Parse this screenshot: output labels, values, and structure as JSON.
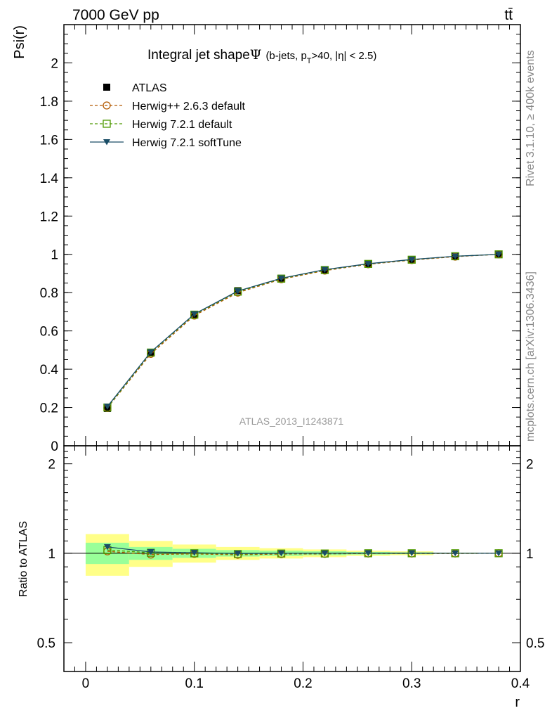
{
  "header": {
    "energy_label": "7000 GeV pp",
    "process_label": "tt̄"
  },
  "side_labels": {
    "rivet": "Rivet 3.1.10, ≥ 400k events",
    "mcplots": "mcplots.cern.ch [arXiv:1306.3436]"
  },
  "chart_data": [
    {
      "panel": "main",
      "type": "line",
      "title": "Integral jet shape",
      "title_symbol": "Ψ",
      "subtitle_prefix": "(b-jets, p",
      "subtitle_sub": "T",
      "subtitle_suffix": ">40, |η| < 2.5)",
      "ylabel": "Psi(r)",
      "xlabel": "r",
      "xlim": [
        -0.02,
        0.4
      ],
      "ylim": [
        0,
        2.2
      ],
      "yticks": [
        0,
        0.2,
        0.4,
        0.6,
        0.8,
        1,
        1.2,
        1.4,
        1.6,
        1.8,
        2
      ],
      "ytick_labels": [
        "0",
        "0.2",
        "0.4",
        "0.6",
        "0.8",
        "1",
        "1.2",
        "1.4",
        "1.6",
        "1.8",
        "2"
      ],
      "watermark": "ATLAS_2013_I1243871",
      "legend_position": "top-left",
      "x": [
        0.02,
        0.06,
        0.1,
        0.14,
        0.18,
        0.22,
        0.26,
        0.3,
        0.34,
        0.38
      ],
      "series": [
        {
          "name": "ATLAS",
          "color": "#000000",
          "marker": "square-filled",
          "values": [
            0.195,
            0.485,
            0.685,
            0.81,
            0.875,
            0.92,
            0.95,
            0.972,
            0.99,
            1.0
          ]
        },
        {
          "name": "Herwig++ 2.6.3 default",
          "color": "#b35900",
          "marker": "circle-open",
          "dash": "dashed",
          "values": [
            0.198,
            0.48,
            0.68,
            0.8,
            0.87,
            0.915,
            0.948,
            0.97,
            0.988,
            1.0
          ]
        },
        {
          "name": "Herwig 7.2.1 default",
          "color": "#4d9900",
          "marker": "square-open",
          "dash": "dashed",
          "values": [
            0.2,
            0.487,
            0.685,
            0.805,
            0.873,
            0.918,
            0.95,
            0.972,
            0.99,
            1.0
          ]
        },
        {
          "name": "Herwig 7.2.1 softTune",
          "color": "#1a4d66",
          "marker": "triangle-down-filled",
          "dash": "solid",
          "values": [
            0.205,
            0.49,
            0.688,
            0.808,
            0.875,
            0.92,
            0.951,
            0.973,
            0.99,
            1.0
          ]
        }
      ]
    },
    {
      "panel": "ratio",
      "type": "line",
      "ylabel": "Ratio to ATLAS",
      "xlabel": "r",
      "xlim": [
        -0.02,
        0.4
      ],
      "ylim": [
        0.4,
        2.3
      ],
      "log_y": true,
      "yticks": [
        0.5,
        1,
        2
      ],
      "ytick_labels": [
        "0.5",
        "1",
        "2"
      ],
      "xticks": [
        0,
        0.1,
        0.2,
        0.3,
        0.4
      ],
      "xtick_labels": [
        "0",
        "0.1",
        "0.2",
        "0.3",
        "0.4"
      ],
      "bins": [
        [
          0.0,
          0.04
        ],
        [
          0.04,
          0.08
        ],
        [
          0.08,
          0.12
        ],
        [
          0.12,
          0.16
        ],
        [
          0.16,
          0.2
        ],
        [
          0.2,
          0.24
        ],
        [
          0.24,
          0.28
        ],
        [
          0.28,
          0.32
        ],
        [
          0.32,
          0.36
        ],
        [
          0.36,
          0.4
        ]
      ],
      "band_inner": {
        "color": "#99ff99",
        "low": [
          0.92,
          0.95,
          0.965,
          0.975,
          0.98,
          0.985,
          0.99,
          0.993,
          0.997,
          1.0
        ],
        "high": [
          1.085,
          1.05,
          1.035,
          1.025,
          1.02,
          1.015,
          1.01,
          1.007,
          1.003,
          1.0
        ]
      },
      "band_outer": {
        "color": "#ffff88",
        "low": [
          0.84,
          0.9,
          0.93,
          0.95,
          0.96,
          0.97,
          0.98,
          0.985,
          0.995,
          1.0
        ],
        "high": [
          1.16,
          1.1,
          1.07,
          1.05,
          1.04,
          1.03,
          1.02,
          1.015,
          1.005,
          1.0
        ]
      },
      "x": [
        0.02,
        0.06,
        0.1,
        0.14,
        0.18,
        0.22,
        0.26,
        0.3,
        0.34,
        0.38
      ],
      "series": [
        {
          "name": "Herwig++ 2.6.3 default",
          "color": "#b35900",
          "marker": "circle-open",
          "dash": "dashed",
          "values": [
            1.015,
            0.99,
            0.995,
            0.988,
            0.994,
            0.995,
            0.998,
            0.998,
            0.998,
            1.0
          ]
        },
        {
          "name": "Herwig 7.2.1 default",
          "color": "#4d9900",
          "marker": "square-open",
          "dash": "dashed",
          "values": [
            1.025,
            1.004,
            1.0,
            0.994,
            0.998,
            0.998,
            1.0,
            1.0,
            1.0,
            1.0
          ]
        },
        {
          "name": "Herwig 7.2.1 softTune",
          "color": "#1a4d66",
          "marker": "triangle-down-filled",
          "dash": "solid",
          "values": [
            1.05,
            1.01,
            1.004,
            0.998,
            1.0,
            1.0,
            1.001,
            1.001,
            1.0,
            1.0
          ]
        }
      ]
    }
  ]
}
